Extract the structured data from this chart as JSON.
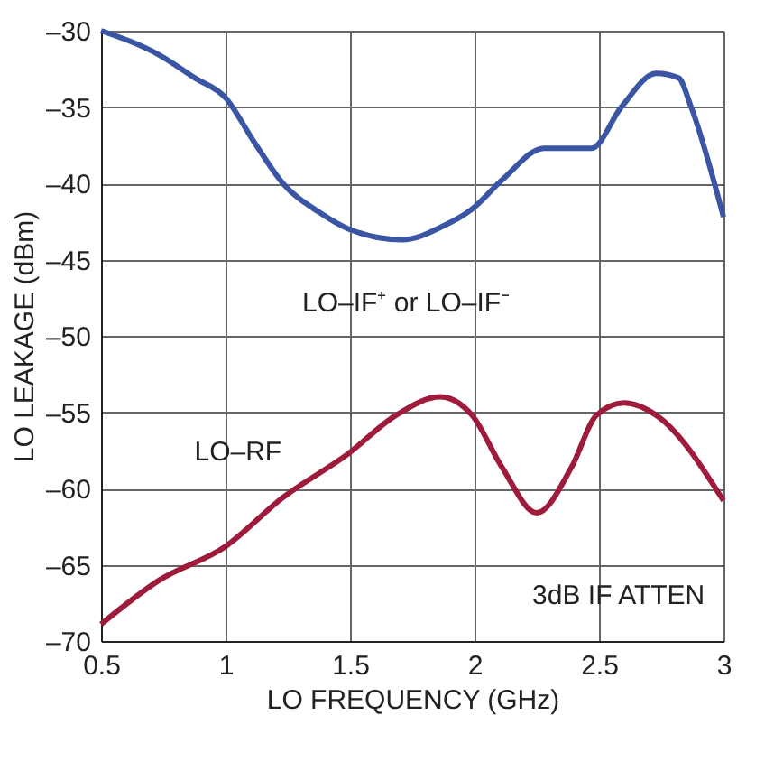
{
  "chart_data": {
    "type": "line",
    "xlabel": "LO FREQUENCY (GHz)",
    "ylabel": "LO LEAKAGE (dBm)",
    "xlim": [
      0.5,
      3
    ],
    "xticks": [
      0.5,
      1,
      1.5,
      2,
      2.5,
      3
    ],
    "ylim": [
      -70,
      -30
    ],
    "yticks": [
      {
        "value": -70,
        "label": "–70"
      },
      {
        "value": -65,
        "label": "–65"
      },
      {
        "value": -60,
        "label": "–60"
      },
      {
        "value": -55,
        "label": "–55"
      },
      {
        "value": -50,
        "label": "–50"
      },
      {
        "value": -45,
        "label": "–45"
      },
      {
        "value": -40,
        "label": "–40"
      },
      {
        "value": -35,
        "label": "–35"
      },
      {
        "value": -30,
        "label": "–30"
      }
    ],
    "grid": true,
    "series": [
      {
        "color": "#3a55a4",
        "x": [
          0.5,
          0.735,
          0.877,
          1.0,
          1.115,
          1.23,
          1.376,
          1.495,
          1.71,
          1.875,
          1.99,
          2.11,
          2.28,
          2.47,
          2.59,
          2.73,
          2.82,
          2.87,
          3.0
        ],
        "values": [
          -30.0,
          -31.6,
          -33.1,
          -34.4,
          -37.3,
          -40.0,
          -41.9,
          -43.0,
          -43.7,
          -42.8,
          -41.7,
          -39.8,
          -37.7,
          -37.7,
          -35.0,
          -32.8,
          -33.1,
          -35.0,
          -42.2
        ]
      },
      {
        "color": "#9e1b3b",
        "x": [
          0.5,
          0.735,
          1.0,
          1.23,
          1.495,
          1.685,
          1.862,
          1.99,
          2.11,
          2.25,
          2.39,
          2.49,
          2.6,
          2.73,
          3.0
        ],
        "values": [
          -68.9,
          -66.0,
          -63.8,
          -60.6,
          -57.7,
          -55.2,
          -54.0,
          -55.2,
          -58.6,
          -61.6,
          -58.6,
          -55.2,
          -54.4,
          -55.2,
          -60.8
        ]
      }
    ],
    "annotations": [
      "LO–IF⁺ or LO–IF⁻",
      "LO–RF",
      "3dB IF ATTEN"
    ]
  }
}
